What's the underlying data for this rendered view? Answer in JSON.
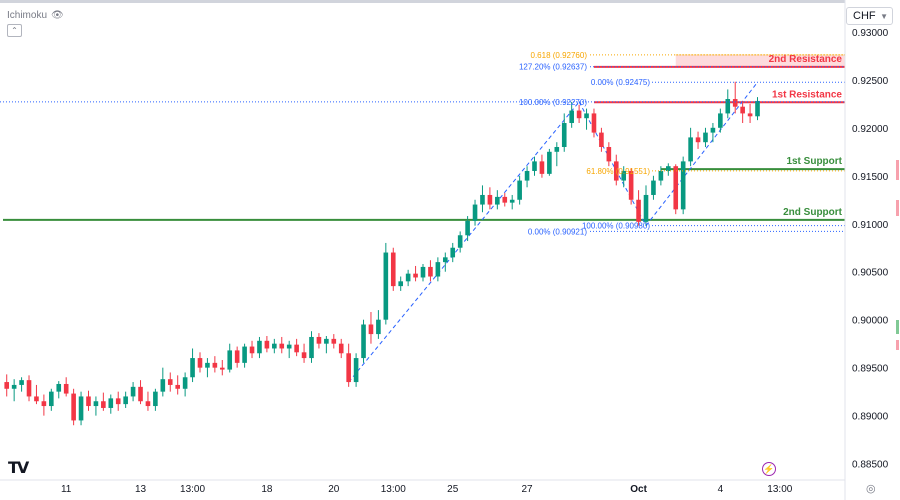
{
  "indicator": {
    "name": "Ichimoku",
    "visibility_icon": "eye-icon"
  },
  "currency": {
    "selected": "CHF",
    "icon": "chevron-down-icon"
  },
  "logo": {
    "text": "TV",
    "icon": "tradingview-logo-icon"
  },
  "chart_data": {
    "type": "candlestick",
    "title": "",
    "price_axis": {
      "ylim": [
        0.8835,
        0.9328
      ],
      "ticks": [
        "0.93000",
        "0.92500",
        "0.92000",
        "0.91500",
        "0.91000",
        "0.90500",
        "0.90000",
        "0.89500",
        "0.89000",
        "0.88500"
      ],
      "tick_values": [
        0.93,
        0.925,
        0.92,
        0.915,
        0.91,
        0.905,
        0.9,
        0.895,
        0.89,
        0.885
      ]
    },
    "time_axis": {
      "labels": [
        "11",
        "13",
        "13:00",
        "18",
        "20",
        "13:00",
        "25",
        "27",
        "Oct",
        "4",
        "13:00"
      ],
      "label_bar_index": [
        8,
        18,
        25,
        35,
        44,
        52,
        60,
        70,
        85,
        96,
        104
      ]
    },
    "bar_count": 113,
    "candles": [
      [
        0.8935,
        0.8943,
        0.892,
        0.8928
      ],
      [
        0.8928,
        0.8938,
        0.8915,
        0.8932
      ],
      [
        0.8932,
        0.894,
        0.8925,
        0.8937
      ],
      [
        0.8937,
        0.8942,
        0.8915,
        0.892
      ],
      [
        0.892,
        0.8932,
        0.8912,
        0.8915
      ],
      [
        0.8915,
        0.8922,
        0.89,
        0.891
      ],
      [
        0.891,
        0.8928,
        0.8905,
        0.8925
      ],
      [
        0.8925,
        0.8936,
        0.8918,
        0.8933
      ],
      [
        0.8933,
        0.894,
        0.892,
        0.8923
      ],
      [
        0.8923,
        0.8928,
        0.889,
        0.8895
      ],
      [
        0.8895,
        0.8925,
        0.889,
        0.892
      ],
      [
        0.892,
        0.8926,
        0.8905,
        0.891
      ],
      [
        0.891,
        0.892,
        0.89,
        0.8915
      ],
      [
        0.8915,
        0.8924,
        0.8905,
        0.8908
      ],
      [
        0.8908,
        0.8922,
        0.8902,
        0.8918
      ],
      [
        0.8918,
        0.8925,
        0.8905,
        0.8912
      ],
      [
        0.8912,
        0.8925,
        0.8908,
        0.892
      ],
      [
        0.892,
        0.8935,
        0.8915,
        0.893
      ],
      [
        0.893,
        0.8937,
        0.8912,
        0.8915
      ],
      [
        0.8915,
        0.8925,
        0.8905,
        0.891
      ],
      [
        0.891,
        0.8928,
        0.8905,
        0.8925
      ],
      [
        0.8925,
        0.895,
        0.892,
        0.8938
      ],
      [
        0.8938,
        0.8945,
        0.8925,
        0.8932
      ],
      [
        0.8932,
        0.8942,
        0.8922,
        0.8928
      ],
      [
        0.8928,
        0.8945,
        0.892,
        0.894
      ],
      [
        0.894,
        0.897,
        0.8935,
        0.896
      ],
      [
        0.896,
        0.8966,
        0.8945,
        0.895
      ],
      [
        0.895,
        0.896,
        0.894,
        0.8955
      ],
      [
        0.8955,
        0.8962,
        0.8945,
        0.895
      ],
      [
        0.895,
        0.8958,
        0.8942,
        0.8948
      ],
      [
        0.8948,
        0.8975,
        0.8945,
        0.8968
      ],
      [
        0.8968,
        0.8972,
        0.895,
        0.8955
      ],
      [
        0.8955,
        0.8975,
        0.895,
        0.8972
      ],
      [
        0.8972,
        0.8978,
        0.896,
        0.8965
      ],
      [
        0.8965,
        0.8982,
        0.896,
        0.8978
      ],
      [
        0.8978,
        0.8983,
        0.8966,
        0.897
      ],
      [
        0.897,
        0.898,
        0.8965,
        0.8975
      ],
      [
        0.8975,
        0.8982,
        0.8965,
        0.897
      ],
      [
        0.897,
        0.8978,
        0.896,
        0.8974
      ],
      [
        0.8974,
        0.898,
        0.8962,
        0.8966
      ],
      [
        0.8966,
        0.8975,
        0.8955,
        0.896
      ],
      [
        0.896,
        0.8988,
        0.8955,
        0.8982
      ],
      [
        0.8982,
        0.8986,
        0.897,
        0.8975
      ],
      [
        0.8975,
        0.8983,
        0.8965,
        0.898
      ],
      [
        0.898,
        0.8985,
        0.897,
        0.8975
      ],
      [
        0.8975,
        0.898,
        0.896,
        0.8965
      ],
      [
        0.8965,
        0.8975,
        0.893,
        0.8935
      ],
      [
        0.8935,
        0.8965,
        0.893,
        0.896
      ],
      [
        0.896,
        0.9,
        0.8955,
        0.8995
      ],
      [
        0.8995,
        0.9008,
        0.8975,
        0.8985
      ],
      [
        0.8985,
        0.901,
        0.898,
        0.9
      ],
      [
        0.9,
        0.908,
        0.8995,
        0.907
      ],
      [
        0.907,
        0.9075,
        0.903,
        0.9035
      ],
      [
        0.9035,
        0.9045,
        0.903,
        0.904
      ],
      [
        0.904,
        0.9052,
        0.9035,
        0.9048
      ],
      [
        0.9048,
        0.9056,
        0.904,
        0.9044
      ],
      [
        0.9044,
        0.9058,
        0.904,
        0.9055
      ],
      [
        0.9055,
        0.9062,
        0.904,
        0.9045
      ],
      [
        0.9045,
        0.9065,
        0.904,
        0.906
      ],
      [
        0.906,
        0.907,
        0.905,
        0.9065
      ],
      [
        0.9065,
        0.908,
        0.906,
        0.9075
      ],
      [
        0.9075,
        0.9092,
        0.907,
        0.9088
      ],
      [
        0.9088,
        0.9108,
        0.9082,
        0.9103
      ],
      [
        0.9103,
        0.9125,
        0.9098,
        0.912
      ],
      [
        0.912,
        0.914,
        0.9112,
        0.913
      ],
      [
        0.913,
        0.9138,
        0.9115,
        0.912
      ],
      [
        0.912,
        0.9135,
        0.9115,
        0.9128
      ],
      [
        0.9128,
        0.9132,
        0.9118,
        0.9122
      ],
      [
        0.9122,
        0.913,
        0.9115,
        0.9125
      ],
      [
        0.9125,
        0.915,
        0.912,
        0.9145
      ],
      [
        0.9145,
        0.916,
        0.9138,
        0.9155
      ],
      [
        0.9155,
        0.917,
        0.915,
        0.9165
      ],
      [
        0.9165,
        0.9172,
        0.9148,
        0.9152
      ],
      [
        0.9152,
        0.9178,
        0.915,
        0.9175
      ],
      [
        0.9175,
        0.9185,
        0.916,
        0.918
      ],
      [
        0.918,
        0.9215,
        0.9175,
        0.9205
      ],
      [
        0.9205,
        0.9227,
        0.92,
        0.9218
      ],
      [
        0.9218,
        0.9224,
        0.9205,
        0.921
      ],
      [
        0.921,
        0.922,
        0.9198,
        0.9215
      ],
      [
        0.9215,
        0.922,
        0.919,
        0.9195
      ],
      [
        0.9195,
        0.92,
        0.9175,
        0.918
      ],
      [
        0.918,
        0.9185,
        0.916,
        0.9165
      ],
      [
        0.9165,
        0.9172,
        0.914,
        0.9145
      ],
      [
        0.9145,
        0.916,
        0.9138,
        0.9155
      ],
      [
        0.9155,
        0.9158,
        0.912,
        0.9125
      ],
      [
        0.9125,
        0.9135,
        0.9098,
        0.9102
      ],
      [
        0.9102,
        0.914,
        0.9098,
        0.913
      ],
      [
        0.913,
        0.915,
        0.9125,
        0.9145
      ],
      [
        0.9145,
        0.916,
        0.914,
        0.9155
      ],
      [
        0.9155,
        0.9163,
        0.915,
        0.916
      ],
      [
        0.916,
        0.9162,
        0.911,
        0.9115
      ],
      [
        0.9115,
        0.917,
        0.911,
        0.9165
      ],
      [
        0.9165,
        0.92,
        0.916,
        0.919
      ],
      [
        0.919,
        0.9196,
        0.9178,
        0.9185
      ],
      [
        0.9185,
        0.92,
        0.918,
        0.9195
      ],
      [
        0.9195,
        0.9205,
        0.9185,
        0.92
      ],
      [
        0.92,
        0.922,
        0.9195,
        0.9215
      ],
      [
        0.9215,
        0.924,
        0.921,
        0.923
      ],
      [
        0.923,
        0.9248,
        0.9215,
        0.9222
      ],
      [
        0.9222,
        0.9228,
        0.9205,
        0.9215
      ],
      [
        0.9215,
        0.9225,
        0.9205,
        0.9212
      ],
      [
        0.9212,
        0.9232,
        0.9208,
        0.9228
      ]
    ],
    "colors": {
      "up": "#089981",
      "down": "#f23645",
      "support": "#388e3c",
      "resistance": "#f23645",
      "fib": "#2962ff",
      "fib_gold": "#f7a600"
    },
    "levels": [
      {
        "name": "2nd Resistance",
        "price": 0.92635,
        "label": "0.92635",
        "kind": "resistance"
      },
      {
        "name": "1st Resistance",
        "price": 0.92266,
        "label": "0.92266",
        "kind": "resistance"
      },
      {
        "name": "1st Support",
        "price": 0.9157,
        "label": "0.91570",
        "kind": "support"
      },
      {
        "name": "2nd Support",
        "price": 0.9104,
        "label": "0.91040",
        "kind": "support"
      }
    ],
    "resistance_zone": {
      "from": 0.92635,
      "to": 0.9276
    },
    "fib_levels": [
      {
        "text": "0.618 (0.92760)",
        "price": 0.9276,
        "color_key": "fib_gold"
      },
      {
        "text": "127.20% (0.92637)",
        "price": 0.92637,
        "color_key": "fib"
      },
      {
        "text": "0.00% (0.92475)",
        "price": 0.92475,
        "color_key": "fib"
      },
      {
        "text": "100.00% (0.92270)",
        "price": 0.9227,
        "color_key": "fib"
      },
      {
        "text": "61.80% (0.91551)",
        "price": 0.91551,
        "color_key": "fib_gold"
      },
      {
        "text": "100.00% (0.90980)",
        "price": 0.9098,
        "color_key": "fib"
      },
      {
        "text": "0.00% (0.90921)",
        "price": 0.90921,
        "color_key": "fib"
      }
    ],
    "trend_lines": [
      {
        "from_bar": 46,
        "from_price": 0.8935,
        "to_bar": 77,
        "to_price": 0.9227
      },
      {
        "from_bar": 77,
        "from_price": 0.9227,
        "to_bar": 86,
        "to_price": 0.9098
      },
      {
        "from_bar": 86,
        "from_price": 0.9098,
        "to_bar": 101,
        "to_price": 0.92475
      }
    ]
  }
}
